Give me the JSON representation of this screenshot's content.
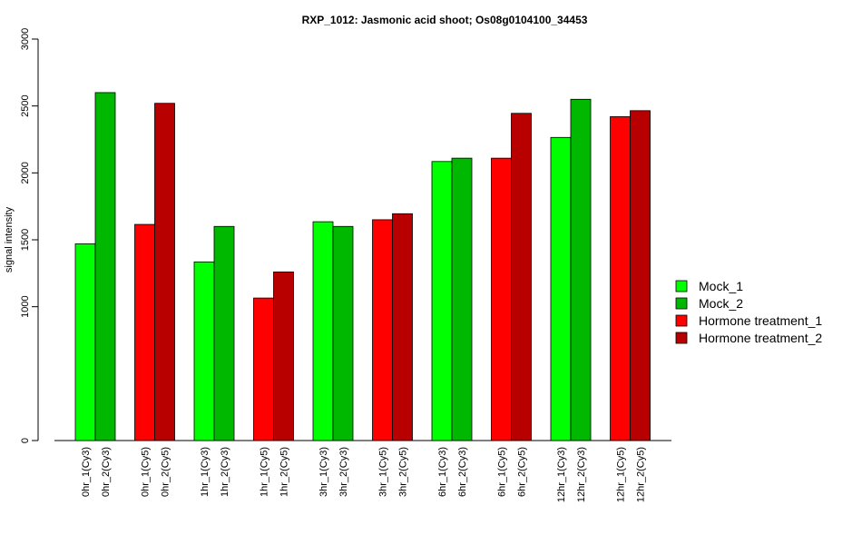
{
  "chart_data": {
    "type": "bar",
    "title": "RXP_1012: Jasmonic acid shoot; Os08g0104100_34453",
    "xlabel": "",
    "ylabel": "signal intensity",
    "ylim": [
      0,
      3000
    ],
    "yticks": [
      "0",
      "1000",
      "1500",
      "2000",
      "2500",
      "3000"
    ],
    "ytick_values": [
      0,
      1000,
      1500,
      2000,
      2500,
      3000
    ],
    "grid": false,
    "legend_position": "right",
    "legend": [
      {
        "name": "Mock_1",
        "color": "#00ff00"
      },
      {
        "name": "Mock_2",
        "color": "#00b800"
      },
      {
        "name": "Hormone treatment_1",
        "color": "#ff0000"
      },
      {
        "name": "Hormone treatment_2",
        "color": "#b80000"
      }
    ],
    "groups": [
      {
        "bars": [
          {
            "label": "0hr_1(Cy3)",
            "value": 1470,
            "color": "#00ff00"
          },
          {
            "label": "0hr_2(Cy3)",
            "value": 2600,
            "color": "#00b800"
          }
        ]
      },
      {
        "bars": [
          {
            "label": "0hr_1(Cy5)",
            "value": 1615,
            "color": "#ff0000"
          },
          {
            "label": "0hr_2(Cy5)",
            "value": 2520,
            "color": "#b80000"
          }
        ]
      },
      {
        "bars": [
          {
            "label": "1hr_1(Cy3)",
            "value": 1335,
            "color": "#00ff00"
          },
          {
            "label": "1hr_2(Cy3)",
            "value": 1600,
            "color": "#00b800"
          }
        ]
      },
      {
        "bars": [
          {
            "label": "1hr_1(Cy5)",
            "value": 1065,
            "color": "#ff0000"
          },
          {
            "label": "1hr_2(Cy5)",
            "value": 1260,
            "color": "#b80000"
          }
        ]
      },
      {
        "bars": [
          {
            "label": "3hr_1(Cy3)",
            "value": 1635,
            "color": "#00ff00"
          },
          {
            "label": "3hr_2(Cy3)",
            "value": 1600,
            "color": "#00b800"
          }
        ]
      },
      {
        "bars": [
          {
            "label": "3hr_1(Cy5)",
            "value": 1650,
            "color": "#ff0000"
          },
          {
            "label": "3hr_2(Cy5)",
            "value": 1695,
            "color": "#b80000"
          }
        ]
      },
      {
        "bars": [
          {
            "label": "6hr_1(Cy3)",
            "value": 2085,
            "color": "#00ff00"
          },
          {
            "label": "6hr_2(Cy3)",
            "value": 2110,
            "color": "#00b800"
          }
        ]
      },
      {
        "bars": [
          {
            "label": "6hr_1(Cy5)",
            "value": 2110,
            "color": "#ff0000"
          },
          {
            "label": "6hr_2(Cy5)",
            "value": 2445,
            "color": "#b80000"
          }
        ]
      },
      {
        "bars": [
          {
            "label": "12hr_1(Cy3)",
            "value": 2265,
            "color": "#00ff00"
          },
          {
            "label": "12hr_2(Cy3)",
            "value": 2550,
            "color": "#00b800"
          }
        ]
      },
      {
        "bars": [
          {
            "label": "12hr_1(Cy5)",
            "value": 2420,
            "color": "#ff0000"
          },
          {
            "label": "12hr_2(Cy5)",
            "value": 2465,
            "color": "#b80000"
          }
        ]
      }
    ]
  }
}
